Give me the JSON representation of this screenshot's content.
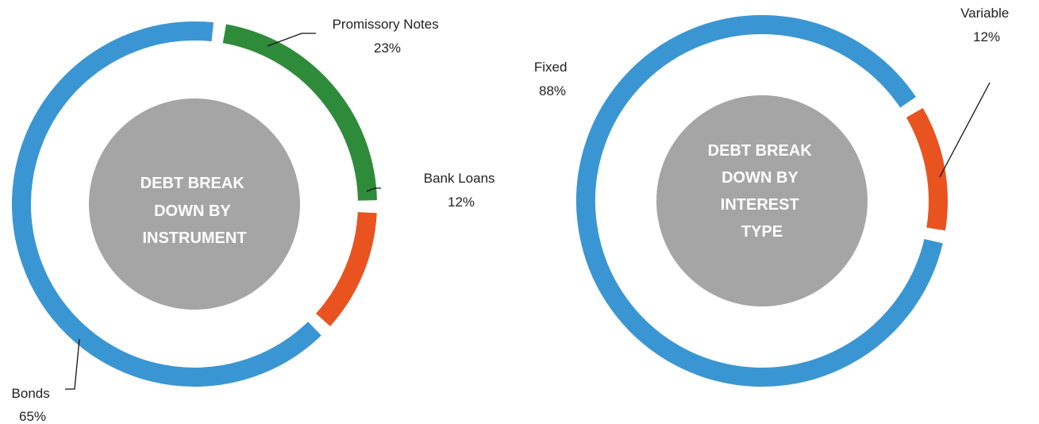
{
  "chart_data": [
    {
      "type": "donut",
      "title": "DEBT BREAK DOWN BY INSTRUMENT",
      "title_lines": [
        "DEBT BREAK",
        "DOWN BY",
        "INSTRUMENT"
      ],
      "slices": [
        {
          "name": "Promissory Notes",
          "value": 23,
          "label": "23%",
          "color": "#2E8B3A"
        },
        {
          "name": "Bank Loans",
          "value": 12,
          "label": "12%",
          "color": "#E8531F"
        },
        {
          "name": "Bonds",
          "value": 65,
          "label": "65%",
          "color": "#3A96D2"
        }
      ],
      "center_color": "#A5A5A5",
      "legend": "none"
    },
    {
      "type": "donut",
      "title": "DEBT BREAK DOWN BY INTEREST TYPE",
      "title_lines": [
        "DEBT BREAK",
        "DOWN BY",
        "INTEREST",
        "TYPE"
      ],
      "slices": [
        {
          "name": "Variable",
          "value": 12,
          "label": "12%",
          "color": "#E8531F"
        },
        {
          "name": "Fixed",
          "value": 88,
          "label": "88%",
          "color": "#3A96D2"
        }
      ],
      "center_color": "#A5A5A5",
      "legend": "none"
    }
  ]
}
